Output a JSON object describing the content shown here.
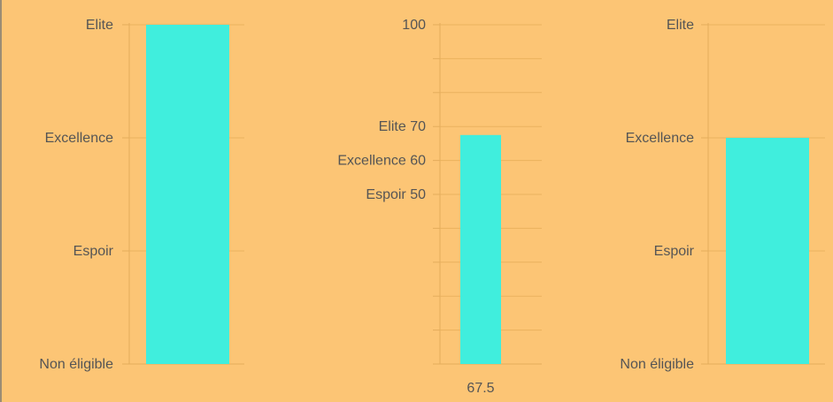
{
  "colors": {
    "background": "#fcc575",
    "bar": "#40eedd",
    "gridline": "#eab25e",
    "axis": "#e4ad5c",
    "text": "#555555",
    "frame": "#9b8c74"
  },
  "chart_data": [
    {
      "type": "bar",
      "y_scale": "categorical",
      "y_levels": [
        "Non éligible",
        "Espoir",
        "Excellence",
        "Elite"
      ],
      "values": [
        "Elite"
      ],
      "grid": true
    },
    {
      "type": "bar",
      "y_scale": "numeric",
      "ylim": [
        0,
        100
      ],
      "y_tick_labels": [
        {
          "value": 100,
          "label": "100"
        },
        {
          "value": 70,
          "label": "Elite  70"
        },
        {
          "value": 60,
          "label": "Excellence  60"
        },
        {
          "value": 50,
          "label": "Espoir  50"
        }
      ],
      "values": [
        67.5
      ],
      "data_labels": [
        "67.5"
      ],
      "grid": true
    },
    {
      "type": "bar",
      "y_scale": "categorical",
      "y_levels": [
        "Non éligible",
        "Espoir",
        "Excellence",
        "Elite"
      ],
      "values": [
        "Excellence"
      ],
      "grid": true
    }
  ]
}
